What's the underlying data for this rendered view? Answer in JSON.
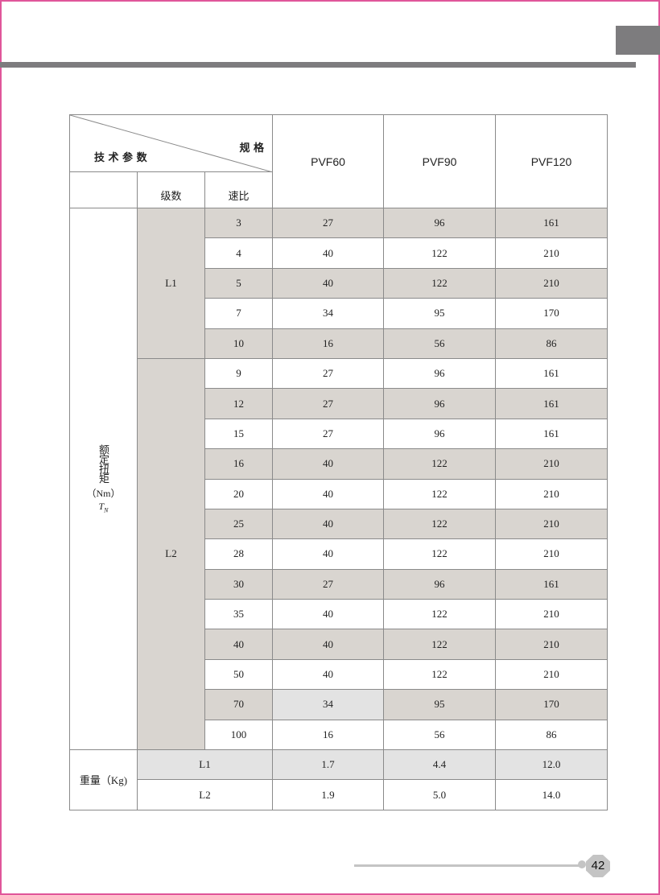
{
  "header": {
    "corner_top": "规 格",
    "corner_bottom": "技 术 参 数",
    "col_stage": "级数",
    "col_ratio": "速比",
    "models": [
      "PVF60",
      "PVF90",
      "PVF120"
    ]
  },
  "torque": {
    "label": "额定扭矩",
    "unit": "（Nm）",
    "symbol": "T",
    "symbol_sub": "N",
    "groups": [
      {
        "stage": "L1",
        "rows": [
          [
            "3",
            "27",
            "96",
            "161"
          ],
          [
            "4",
            "40",
            "122",
            "210"
          ],
          [
            "5",
            "40",
            "122",
            "210"
          ],
          [
            "7",
            "34",
            "95",
            "170"
          ],
          [
            "10",
            "16",
            "56",
            "86"
          ]
        ]
      },
      {
        "stage": "L2",
        "rows": [
          [
            "9",
            "27",
            "96",
            "161"
          ],
          [
            "12",
            "27",
            "96",
            "161"
          ],
          [
            "15",
            "27",
            "96",
            "161"
          ],
          [
            "16",
            "40",
            "122",
            "210"
          ],
          [
            "20",
            "40",
            "122",
            "210"
          ],
          [
            "25",
            "40",
            "122",
            "210"
          ],
          [
            "28",
            "40",
            "122",
            "210"
          ],
          [
            "30",
            "27",
            "96",
            "161"
          ],
          [
            "35",
            "40",
            "122",
            "210"
          ],
          [
            "40",
            "40",
            "122",
            "210"
          ],
          [
            "50",
            "40",
            "122",
            "210"
          ],
          [
            "70",
            "34",
            "95",
            "170"
          ],
          [
            "100",
            "16",
            "56",
            "86"
          ]
        ]
      }
    ]
  },
  "weight": {
    "label": "重量（Kg)",
    "rows": [
      [
        "L1",
        "1.7",
        "4.4",
        "12.0"
      ],
      [
        "L2",
        "1.9",
        "5.0",
        "14.0"
      ]
    ]
  },
  "page_number": "42",
  "colors": {
    "shade": "#d9d5d0",
    "light_shade": "#e3e3e3",
    "bar": "#7d7c7e",
    "border_accent": "#e0569a"
  }
}
